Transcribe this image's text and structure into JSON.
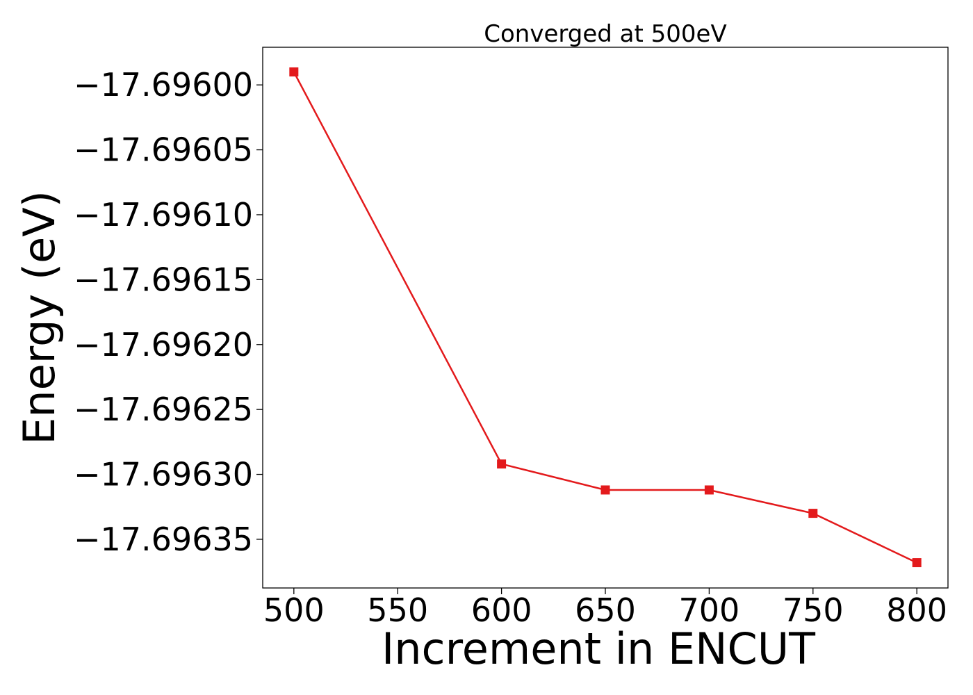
{
  "chart_data": {
    "type": "line",
    "title": "Converged at 500eV",
    "xlabel": "Increment in ENCUT",
    "ylabel": "Energy (eV)",
    "x": [
      500,
      600,
      650,
      700,
      750,
      800
    ],
    "series": [
      {
        "values": [
          -17.69599,
          -17.696292,
          -17.696312,
          -17.696312,
          -17.69633,
          -17.696368
        ],
        "color": "#e31a1c",
        "marker": "square"
      }
    ],
    "xlim": [
      485,
      815
    ],
    "ylim": [
      -17.6963875,
      -17.695971
    ],
    "xticks": [
      500,
      550,
      600,
      650,
      700,
      750,
      800
    ],
    "xtick_labels": [
      "500",
      "550",
      "600",
      "650",
      "700",
      "750",
      "800"
    ],
    "yticks": [
      -17.696,
      -17.69605,
      -17.6961,
      -17.69615,
      -17.6962,
      -17.69625,
      -17.6963,
      -17.69635
    ],
    "ytick_labels": [
      "−17.69600",
      "−17.69605",
      "−17.69610",
      "−17.69615",
      "−17.69620",
      "−17.69625",
      "−17.69630",
      "−17.69635"
    ],
    "grid": false,
    "legend": false
  }
}
